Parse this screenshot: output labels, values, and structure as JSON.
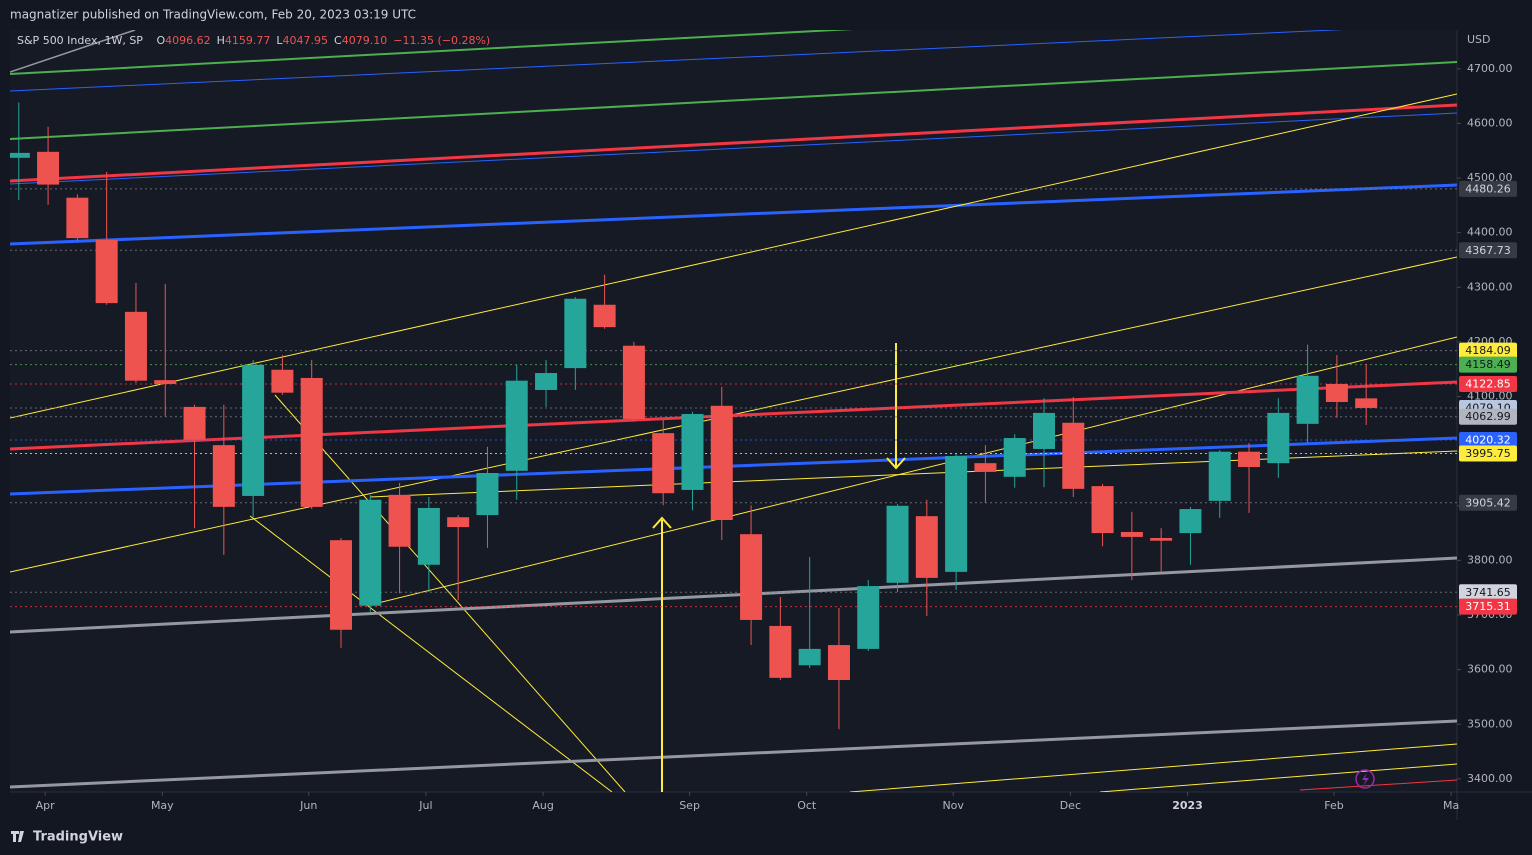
{
  "published": "magnatizer published on TradingView.com, Feb 20, 2023 03:19 UTC",
  "brand": "TradingView",
  "chart_data": {
    "type": "candlestick",
    "title": "S&P 500 Index, 1W, SP",
    "ohlc": [
      {
        "key": "O",
        "value": "4096.62"
      },
      {
        "key": "H",
        "value": "4159.77"
      },
      {
        "key": "L",
        "value": "4047.95"
      },
      {
        "key": "C",
        "value": "4079.10"
      }
    ],
    "change": "−11.35 (−0.28%)",
    "currency": "USD",
    "up_color": "#26a69a",
    "down_color": "#ef5350",
    "candles": {
      "open": [
        4537,
        4548,
        4464,
        4387,
        4255,
        4130,
        4081,
        4011,
        3918,
        4149,
        4134,
        3837,
        3717,
        3920,
        3792,
        3879,
        3883,
        3964,
        4112,
        4152,
        4268,
        4193,
        4033,
        3929,
        4083,
        3848,
        3680,
        3608,
        3645,
        3638,
        3759,
        3881,
        3779,
        3978,
        3953,
        4004,
        4052,
        3936,
        3852,
        3841,
        3850,
        3909,
        3999,
        3978,
        4050,
        4123,
        4096.62
      ],
      "high": [
        4638,
        4594,
        4470,
        4511,
        4308,
        4306,
        4085,
        4085,
        4167,
        4176,
        4167,
        3841,
        3920,
        3942,
        3916,
        3883,
        4008,
        4158,
        4167,
        4282,
        4323,
        4200,
        4057,
        4072,
        4118,
        3901,
        3733,
        3806,
        3713,
        3764,
        3903,
        3911,
        3995,
        4011,
        4031,
        4097,
        4099,
        3940,
        3889,
        3859,
        3898,
        4002,
        4015,
        4097,
        4195,
        4176,
        4159.77
      ],
      "low": [
        4460,
        4451,
        4385,
        4268,
        4125,
        4063,
        3859,
        3810,
        3878,
        4103,
        3894,
        3640,
        3706,
        3740,
        3742,
        3727,
        3823,
        3911,
        4081,
        4112,
        4224,
        4055,
        3901,
        3892,
        3837,
        3645,
        3581,
        3603,
        3491,
        3634,
        3742,
        3698,
        3746,
        3905,
        3933,
        3934,
        3916,
        3826,
        3764,
        3779,
        3792,
        3878,
        3887,
        3951,
        4015,
        4061,
        4047.95
      ],
      "close": [
        4546,
        4488,
        4390,
        4271,
        4129,
        4123,
        4021,
        3898,
        4158,
        4107,
        3898,
        3673,
        3911,
        3825,
        3896,
        3861,
        3960,
        4129,
        4143,
        4279,
        4227,
        4059,
        3923,
        4068,
        3874,
        3691,
        3585,
        3638,
        3581,
        3753,
        3900,
        3768,
        3991,
        3962,
        4024,
        4070,
        3931,
        3850,
        3843,
        3836,
        3894,
        3999,
        3971,
        4070,
        4138,
        4090,
        4079.1
      ]
    },
    "xlim": [
      -0.3,
      49.1
    ],
    "xticks": [
      {
        "value": 0.9,
        "label": "Apr"
      },
      {
        "value": 4.9,
        "label": "May"
      },
      {
        "value": 9.9,
        "label": "Jun"
      },
      {
        "value": 13.9,
        "label": "Jul"
      },
      {
        "value": 17.9,
        "label": "Aug"
      },
      {
        "value": 22.9,
        "label": "Sep"
      },
      {
        "value": 26.9,
        "label": "Oct"
      },
      {
        "value": 31.9,
        "label": "Nov"
      },
      {
        "value": 35.9,
        "label": "Dec"
      },
      {
        "value": 39.9,
        "label": "2023"
      },
      {
        "value": 44.9,
        "label": "Feb"
      },
      {
        "value": 48.9,
        "label": "Ma"
      }
    ],
    "ylim": [
      3376,
      4771
    ],
    "yticks": [
      {
        "value": 4700,
        "label": "4700.00"
      },
      {
        "value": 4600,
        "label": "4600.00"
      },
      {
        "value": 4500,
        "label": "4500.00"
      },
      {
        "value": 4400,
        "label": "4400.00"
      },
      {
        "value": 4300,
        "label": "4300.00"
      },
      {
        "value": 4200,
        "label": "4200.00"
      },
      {
        "value": 4100,
        "label": "4100.00"
      },
      {
        "value": 4000,
        "label": "4000.00"
      },
      {
        "value": 3900,
        "label": "3900.00"
      },
      {
        "value": 3800,
        "label": "3800.00"
      },
      {
        "value": 3700,
        "label": "3700.00"
      },
      {
        "value": 3600,
        "label": "3600.00"
      },
      {
        "value": 3500,
        "label": "3500.00"
      },
      {
        "value": 3400,
        "label": "3400.00"
      }
    ],
    "grid": false,
    "price_lines": [
      {
        "value": 4480.26,
        "color": "#363a45",
        "text_color": "#d1d4dc",
        "line_color": "#787b86"
      },
      {
        "value": 4367.73,
        "color": "#363a45",
        "text_color": "#d1d4dc",
        "line_color": "#787b86"
      },
      {
        "value": 4184.09,
        "color": "#ffeb3b",
        "text_color": "#131722",
        "line_color": "#787b86"
      },
      {
        "value": 4158.49,
        "color": "#4caf50",
        "text_color": "#131722",
        "line_color": "#4caf50"
      },
      {
        "value": 4122.85,
        "color": "#f23645",
        "text_color": "#ffffff",
        "line_color": "#f23645"
      },
      {
        "value": 4079.1,
        "label": "4079.10",
        "color": "#b8c6e0",
        "text_color": "#131722",
        "line_color": "#787b86"
      },
      {
        "value": 4062.99,
        "color": "#b2b5be",
        "text_color": "#131722",
        "line_color": "#787b86"
      },
      {
        "value": 4020.32,
        "color": "#2962ff",
        "text_color": "#ffffff",
        "line_color": "#2962ff"
      },
      {
        "value": 3995.75,
        "color": "#ffeb3b",
        "text_color": "#131722",
        "line_color": "#ffeb3b"
      },
      {
        "value": 3905.42,
        "color": "#363a45",
        "text_color": "#d1d4dc",
        "line_color": "#787b86"
      },
      {
        "value": 3741.65,
        "color": "#d1d4dc",
        "text_color": "#131722",
        "line_color": "#787b86"
      },
      {
        "value": 3715.31,
        "color": "#f23645",
        "text_color": "#ffffff",
        "line_color": "#f23645"
      }
    ]
  }
}
